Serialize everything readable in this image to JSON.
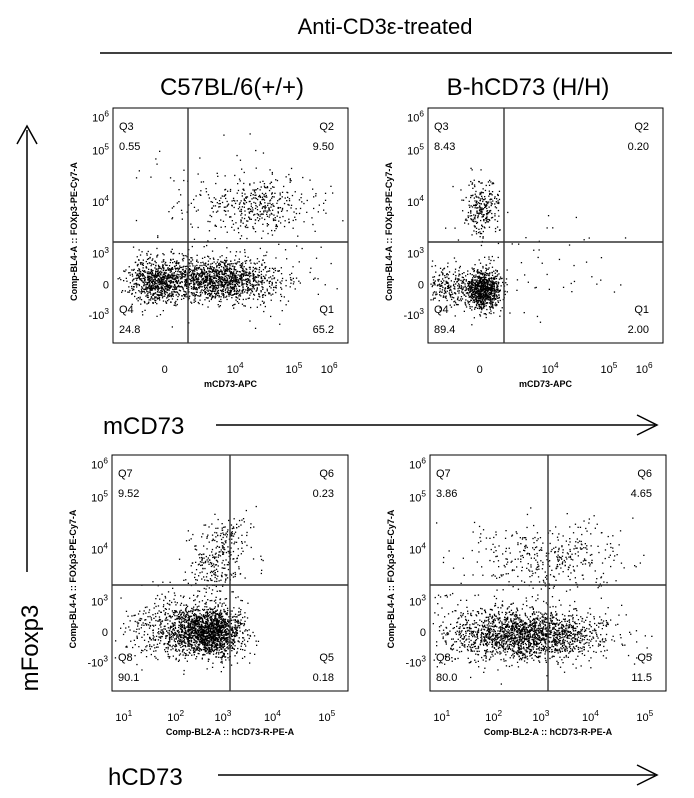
{
  "figure": {
    "header": "Anti-CD3ε-treated",
    "col_labels": [
      "C57BL/6(+/+)",
      "B-hCD73 (H/H)"
    ],
    "row_labels": [
      "mCD73",
      "hCD73"
    ],
    "y_group_label": "mFoxp3"
  },
  "chart_data": [
    {
      "type": "scatter",
      "title": "C57BL/6(+/+)",
      "xlabel": "mCD73-APC",
      "ylabel": "Comp-BL4-A :: FOXp3-PE-Cy7-A",
      "x_ticks": [
        "0",
        "10^4",
        "10^5",
        "10^6"
      ],
      "y_ticks": [
        "-10^3",
        "0",
        "10^3",
        "10^4",
        "10^5",
        "10^6"
      ],
      "quadrants": [
        {
          "name": "Q3",
          "value": "0.55"
        },
        {
          "name": "Q2",
          "value": "9.50"
        },
        {
          "name": "Q4",
          "value": "24.8"
        },
        {
          "name": "Q1",
          "value": "65.2"
        }
      ]
    },
    {
      "type": "scatter",
      "title": "B-hCD73 (H/H)",
      "xlabel": "mCD73-APC",
      "ylabel": "Comp-BL4-A :: FOXp3-PE-Cy7-A",
      "x_ticks": [
        "0",
        "10^4",
        "10^5",
        "10^6"
      ],
      "y_ticks": [
        "-10^3",
        "0",
        "10^3",
        "10^4",
        "10^5",
        "10^6"
      ],
      "quadrants": [
        {
          "name": "Q3",
          "value": "8.43"
        },
        {
          "name": "Q2",
          "value": "0.20"
        },
        {
          "name": "Q4",
          "value": "89.4"
        },
        {
          "name": "Q1",
          "value": "2.00"
        }
      ]
    },
    {
      "type": "scatter",
      "title": "C57BL/6(+/+)",
      "xlabel": "Comp-BL2-A :: hCD73-R-PE-A",
      "ylabel": "Comp-BL4-A :: FOXp3-PE-Cy7-A",
      "x_ticks": [
        "10^1",
        "10^2",
        "10^3",
        "10^4",
        "10^5"
      ],
      "y_ticks": [
        "-10^3",
        "0",
        "10^3",
        "10^4",
        "10^5",
        "10^6"
      ],
      "quadrants": [
        {
          "name": "Q7",
          "value": "9.52"
        },
        {
          "name": "Q6",
          "value": "0.23"
        },
        {
          "name": "Q8",
          "value": "90.1"
        },
        {
          "name": "Q5",
          "value": "0.18"
        }
      ]
    },
    {
      "type": "scatter",
      "title": "B-hCD73 (H/H)",
      "xlabel": "Comp-BL2-A :: hCD73-R-PE-A",
      "ylabel": "Comp-BL4-A :: FOXp3-PE-Cy7-A",
      "x_ticks": [
        "10^1",
        "10^2",
        "10^3",
        "10^4",
        "10^5"
      ],
      "y_ticks": [
        "-10^3",
        "0",
        "10^3",
        "10^4",
        "10^5",
        "10^6"
      ],
      "quadrants": [
        {
          "name": "Q7",
          "value": "3.86"
        },
        {
          "name": "Q6",
          "value": "4.65"
        },
        {
          "name": "Q8",
          "value": "80.0"
        },
        {
          "name": "Q5",
          "value": "11.5"
        }
      ]
    }
  ]
}
